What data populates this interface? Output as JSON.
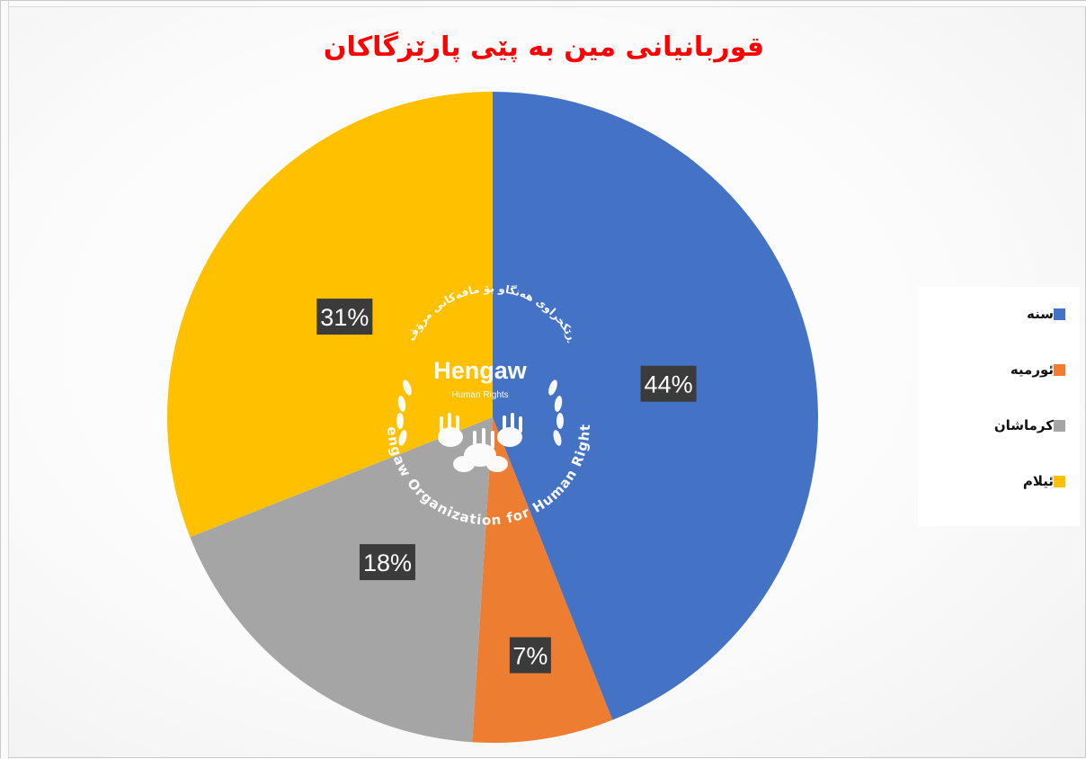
{
  "chart_data": {
    "type": "pie",
    "title": "قوربانیانی مین به پێی پارێزگاکان",
    "slices": [
      {
        "name": "سنه",
        "value": 44,
        "label": "44%",
        "color": "#4472c4"
      },
      {
        "name": "ئورمیه",
        "value": 7,
        "label": "7%",
        "color": "#ed7d31"
      },
      {
        "name": "کرماشان",
        "value": 18,
        "label": "18%",
        "color": "#a5a5a5"
      },
      {
        "name": "ئیلام",
        "value": 31,
        "label": "31%",
        "color": "#ffc000"
      }
    ],
    "legend_position": "right"
  },
  "watermark": {
    "name": "Hengaw",
    "subtitle": "Human Rights",
    "arc_text": "Hengaw Organization for Human Rights",
    "kurdish_arc": "ڕێکخراوی هەنگاو بۆ مافەکانی مرۆڤ"
  }
}
